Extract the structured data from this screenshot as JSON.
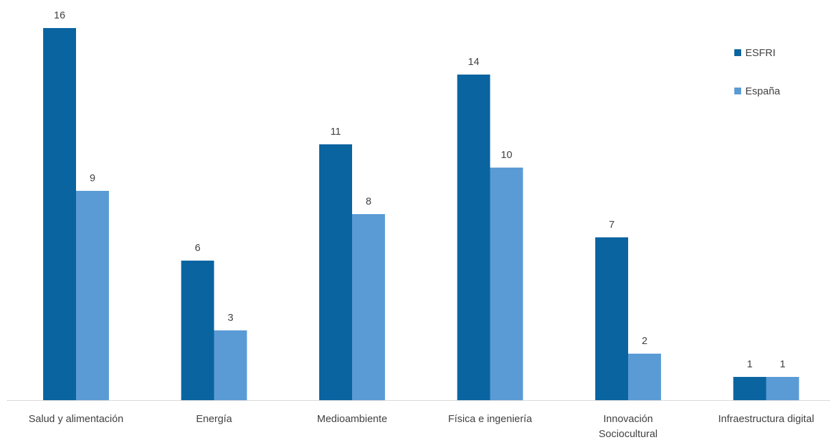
{
  "chart_data": {
    "type": "bar",
    "title": "",
    "xlabel": "",
    "ylabel": "",
    "categories": [
      [
        "Salud y alimentación"
      ],
      [
        "Energía"
      ],
      [
        "Medioambiente"
      ],
      [
        "Física e ingeniería"
      ],
      [
        "Innovación",
        "Sociocultural"
      ],
      [
        "Infraestructura digital"
      ]
    ],
    "series": [
      {
        "name": "ESFRI",
        "color": "#0a64a0",
        "values": [
          16,
          6,
          11,
          14,
          7,
          1
        ]
      },
      {
        "name": "España",
        "color": "#5b9bd5",
        "values": [
          9,
          3,
          8,
          10,
          2,
          1
        ]
      }
    ],
    "ylim": [
      0,
      16
    ],
    "grid": false,
    "axis_color": "#d9d9d9",
    "legend": {
      "position": "top-right"
    }
  }
}
